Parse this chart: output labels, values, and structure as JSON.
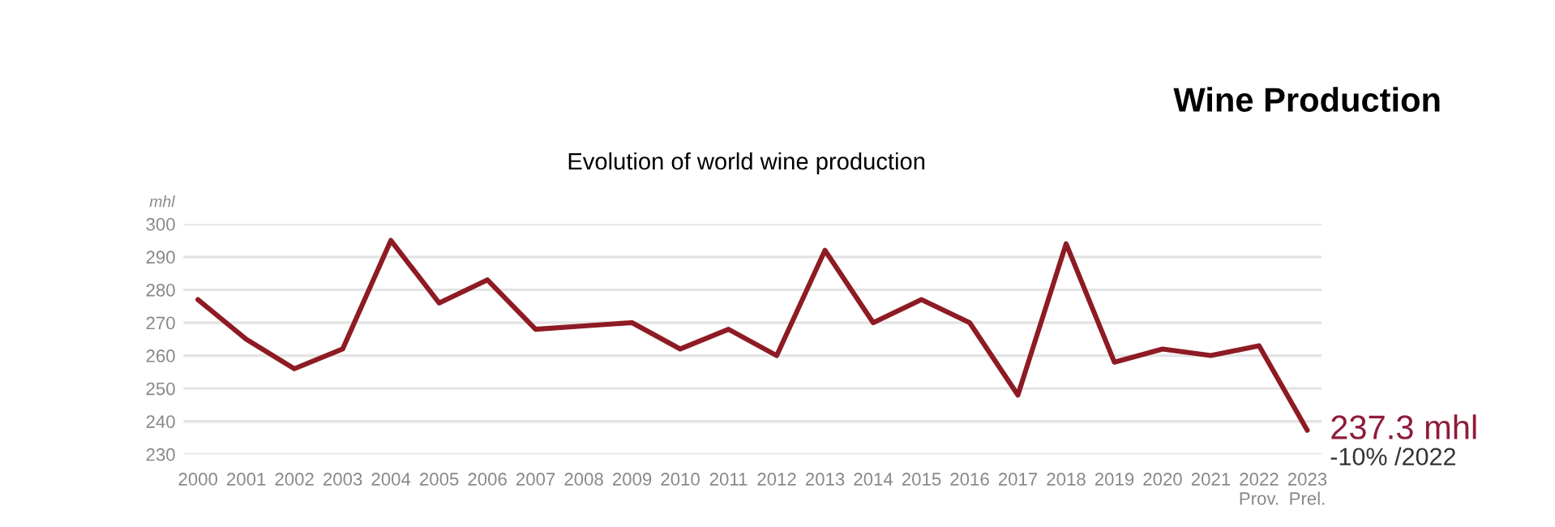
{
  "chart_data": {
    "type": "line",
    "title": "Wine Production",
    "subtitle": "Evolution of world wine production",
    "ylabel": "mhl",
    "categories": [
      "2000",
      "2001",
      "2002",
      "2003",
      "2004",
      "2005",
      "2006",
      "2007",
      "2008",
      "2009",
      "2010",
      "2011",
      "2012",
      "2013",
      "2014",
      "2015",
      "2016",
      "2017",
      "2018",
      "2019",
      "2020",
      "2021",
      "2022\nProv.",
      "2023\nPrel."
    ],
    "series": [
      {
        "color": "#8e1b24",
        "values": [
          277,
          265,
          256,
          262,
          295,
          276,
          283,
          268,
          269,
          270,
          262,
          268,
          260,
          292,
          270,
          277,
          270,
          248,
          294,
          258,
          262,
          260,
          263,
          237.3
        ]
      }
    ],
    "ylim": [
      230,
      300
    ],
    "yticks": [
      230,
      240,
      250,
      260,
      270,
      280,
      290,
      300
    ],
    "grid": "y",
    "legend": false,
    "marker": "none",
    "line_style": "solid",
    "annotations": [
      {
        "text": "237.3 mhl",
        "x": "2023\nPrel.",
        "y": 237.3
      },
      "-10% /2022"
    ]
  }
}
